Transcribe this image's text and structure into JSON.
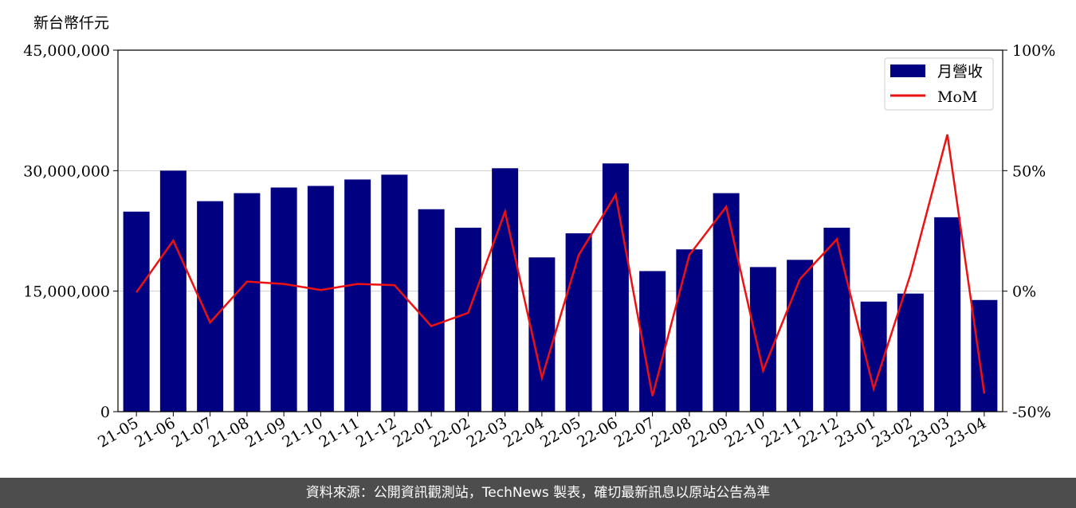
{
  "chart_data": {
    "type": "bar",
    "ylabel": "新台幣仟元",
    "categories": [
      "21-05",
      "21-06",
      "21-07",
      "21-08",
      "21-09",
      "21-10",
      "21-11",
      "21-12",
      "22-01",
      "22-02",
      "22-03",
      "22-04",
      "22-05",
      "22-06",
      "22-07",
      "22-08",
      "22-09",
      "22-10",
      "22-11",
      "22-12",
      "23-01",
      "23-02",
      "23-03",
      "23-04"
    ],
    "series": [
      {
        "name": "月營收",
        "type": "bar",
        "axis": "left",
        "color": "#000080",
        "values": [
          24900000,
          30000000,
          26200000,
          27200000,
          27900000,
          28100000,
          28900000,
          29500000,
          25200000,
          22900000,
          30300000,
          19200000,
          22200000,
          30900000,
          17500000,
          20200000,
          27200000,
          18000000,
          18900000,
          22900000,
          13700000,
          14700000,
          24200000,
          13900000
        ]
      },
      {
        "name": "MoM",
        "type": "line",
        "axis": "right",
        "color": "#ee1111",
        "values": [
          -0.5,
          21,
          -13,
          4,
          3,
          0.5,
          3,
          2.5,
          -14.5,
          -9,
          33,
          -36,
          15,
          40,
          -43.5,
          15,
          35,
          -33,
          5,
          21.5,
          -40.5,
          7,
          65,
          -42.5
        ]
      }
    ],
    "ylim": [
      0,
      45000000
    ],
    "ylim_right": [
      -50,
      100
    ],
    "yticks_left": [
      "0",
      "15,000,000",
      "30,000,000",
      "45,000,000"
    ],
    "yticks_right": [
      "-50%",
      "0%",
      "50%",
      "100%"
    ],
    "grid": true,
    "legend": "top-right"
  },
  "footer": {
    "text": "資料來源：公開資訊觀測站，TechNews 製表，確切最新訊息以原站公告為準"
  },
  "colors": {
    "bar": "#000080",
    "line": "#ee1111",
    "footer_bg": "#4d4d4d"
  }
}
